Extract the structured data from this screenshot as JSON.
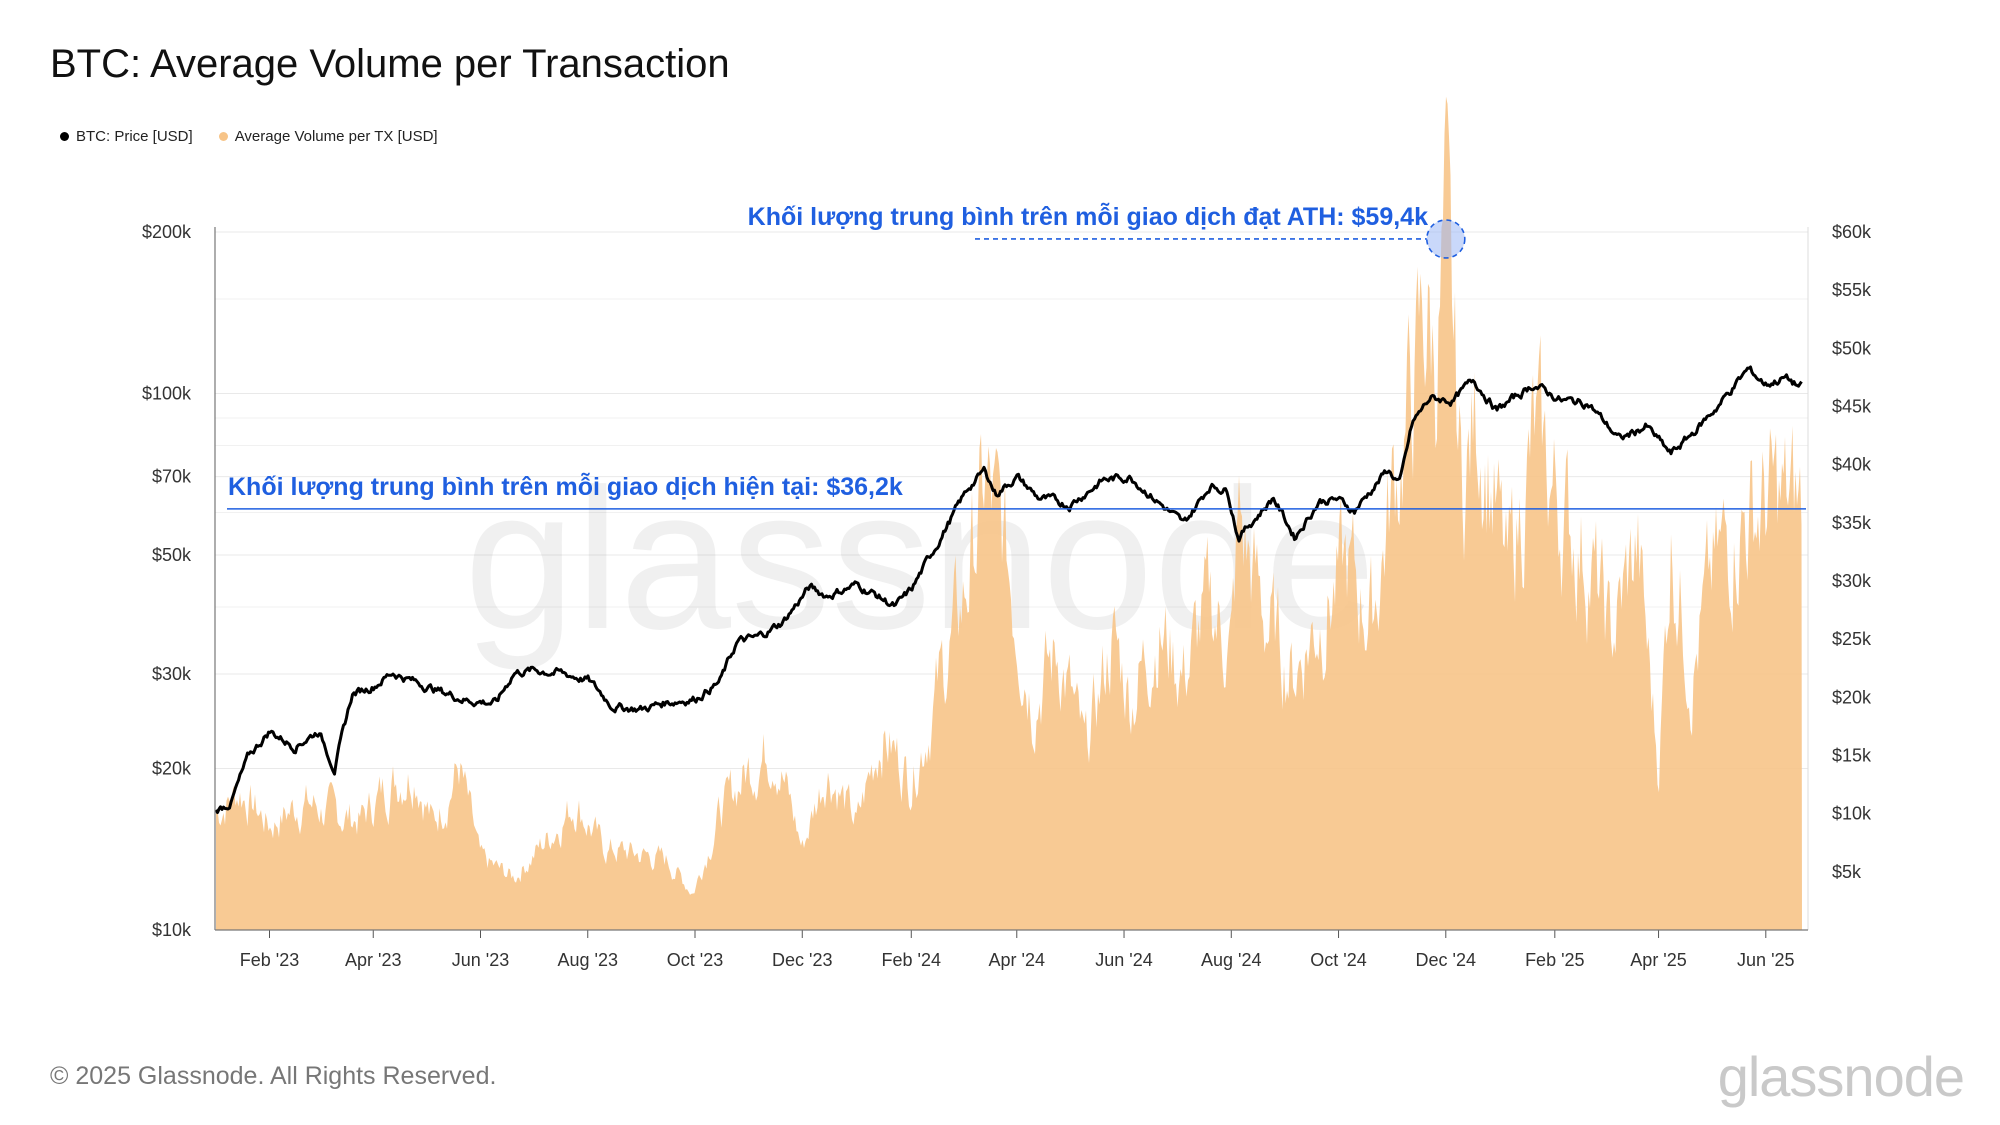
{
  "title": "BTC: Average Volume per Transaction",
  "legend": [
    {
      "label": "BTC: Price [USD]",
      "color": "#000000"
    },
    {
      "label": "Average Volume per TX [USD]",
      "color": "#f7c488"
    }
  ],
  "footer": "© 2025 Glassnode. All Rights Reserved.",
  "brand": "glassnode",
  "watermark": "glassnode",
  "chart_data": {
    "type": "line",
    "title": "BTC: Average Volume per Transaction",
    "x_ticks": [
      "Feb '23",
      "Apr '23",
      "Jun '23",
      "Aug '23",
      "Oct '23",
      "Dec '23",
      "Feb '24",
      "Apr '24",
      "Jun '24",
      "Aug '24",
      "Oct '24",
      "Dec '24",
      "Feb '25",
      "Apr '25",
      "Jun '25"
    ],
    "y_left_ticks": [
      "$10k",
      "$20k",
      "$30k",
      "$50k",
      "$70k",
      "$100k",
      "$200k"
    ],
    "y_left_scale": "log",
    "y_left_range": [
      10000,
      200000
    ],
    "y_right_ticks": [
      "$5k",
      "$10k",
      "$15k",
      "$20k",
      "$25k",
      "$30k",
      "$35k",
      "$40k",
      "$45k",
      "$50k",
      "$55k",
      "$60k"
    ],
    "y_right_range": [
      2000,
      60000
    ],
    "grid": true,
    "legend_position": "top-left",
    "series": [
      {
        "name": "BTC: Price [USD]",
        "axis": "left",
        "color": "#000000",
        "x": [
          "2023-01-01",
          "2023-01-10",
          "2023-01-20",
          "2023-02-01",
          "2023-02-15",
          "2023-03-01",
          "2023-03-10",
          "2023-03-20",
          "2023-04-01",
          "2023-04-12",
          "2023-04-25",
          "2023-05-10",
          "2023-05-25",
          "2023-06-10",
          "2023-06-20",
          "2023-07-01",
          "2023-07-15",
          "2023-08-01",
          "2023-08-15",
          "2023-08-20",
          "2023-09-01",
          "2023-09-15",
          "2023-10-01",
          "2023-10-15",
          "2023-10-25",
          "2023-11-05",
          "2023-11-20",
          "2023-12-05",
          "2023-12-15",
          "2024-01-01",
          "2024-01-10",
          "2024-01-23",
          "2024-02-01",
          "2024-02-15",
          "2024-02-28",
          "2024-03-05",
          "2024-03-14",
          "2024-03-20",
          "2024-04-01",
          "2024-04-13",
          "2024-05-01",
          "2024-05-20",
          "2024-06-05",
          "2024-06-20",
          "2024-07-05",
          "2024-07-20",
          "2024-07-30",
          "2024-08-05",
          "2024-08-25",
          "2024-09-06",
          "2024-09-20",
          "2024-09-30",
          "2024-10-10",
          "2024-10-29",
          "2024-11-05",
          "2024-11-12",
          "2024-11-22",
          "2024-12-05",
          "2024-12-17",
          "2024-12-30",
          "2025-01-20",
          "2025-02-05",
          "2025-02-20",
          "2025-03-10",
          "2025-03-25",
          "2025-04-08",
          "2025-04-20",
          "2025-05-05",
          "2025-05-22",
          "2025-06-01",
          "2025-06-12",
          "2025-06-20"
        ],
        "y": [
          16600,
          17300,
          21000,
          23500,
          22000,
          23500,
          20000,
          27500,
          28500,
          30200,
          29000,
          27800,
          26800,
          26500,
          30200,
          30500,
          30200,
          29300,
          26200,
          26000,
          25800,
          26600,
          27000,
          29000,
          34500,
          35000,
          37500,
          43500,
          42000,
          44000,
          42500,
          40000,
          43000,
          52000,
          62000,
          67000,
          72000,
          65000,
          70000,
          64000,
          62000,
          69000,
          70000,
          63000,
          57000,
          67500,
          66000,
          54000,
          64000,
          54000,
          63000,
          63500,
          60500,
          72000,
          68000,
          88000,
          98000,
          97000,
          106000,
          93000,
          104000,
          97000,
          96000,
          82000,
          87000,
          77000,
          84000,
          95000,
          111000,
          104000,
          107000,
          103000
        ]
      },
      {
        "name": "Average Volume per TX [USD]",
        "axis": "right",
        "color": "#f7c488",
        "x": [
          "2023-01-01",
          "2023-01-15",
          "2023-02-01",
          "2023-02-20",
          "2023-03-10",
          "2023-03-25",
          "2023-04-10",
          "2023-04-25",
          "2023-05-05",
          "2023-05-20",
          "2023-06-01",
          "2023-06-20",
          "2023-07-10",
          "2023-07-25",
          "2023-08-10",
          "2023-08-30",
          "2023-09-15",
          "2023-09-30",
          "2023-10-15",
          "2023-11-01",
          "2023-11-15",
          "2023-12-01",
          "2023-12-15",
          "2024-01-01",
          "2024-01-15",
          "2024-02-01",
          "2024-02-15",
          "2024-03-01",
          "2024-03-14",
          "2024-03-25",
          "2024-04-10",
          "2024-04-25",
          "2024-05-10",
          "2024-05-25",
          "2024-06-05",
          "2024-06-20",
          "2024-07-05",
          "2024-07-20",
          "2024-08-01",
          "2024-08-05",
          "2024-08-20",
          "2024-09-05",
          "2024-09-20",
          "2024-10-05",
          "2024-10-20",
          "2024-11-01",
          "2024-11-12",
          "2024-11-20",
          "2024-11-25",
          "2024-12-01",
          "2024-12-10",
          "2024-12-20",
          "2025-01-05",
          "2025-01-20",
          "2025-02-05",
          "2025-02-20",
          "2025-03-05",
          "2025-03-20",
          "2025-04-01",
          "2025-04-08",
          "2025-04-20",
          "2025-05-01",
          "2025-05-15",
          "2025-05-25",
          "2025-06-05",
          "2025-06-20"
        ],
        "y": [
          10000,
          12000,
          9000,
          11000,
          10000,
          9500,
          12500,
          14000,
          9000,
          14000,
          6000,
          4500,
          8000,
          11000,
          7000,
          6500,
          6000,
          3200,
          10000,
          14000,
          16000,
          7000,
          14000,
          9000,
          17000,
          13000,
          20000,
          28000,
          38000,
          33000,
          20000,
          24000,
          15000,
          25000,
          20000,
          26000,
          22000,
          28000,
          24000,
          35000,
          27000,
          22000,
          27000,
          31000,
          27000,
          38000,
          46000,
          53000,
          49000,
          59400,
          38000,
          45000,
          30000,
          42000,
          36000,
          32000,
          25000,
          33000,
          14000,
          34000,
          22000,
          30000,
          35000,
          36000,
          37000,
          36200
        ]
      }
    ],
    "annotations": [
      {
        "text": "Khối lượng trung bình trên mỗi giao dịch đạt ATH: $59,4k",
        "x": "2024-12-01",
        "y": 59400,
        "axis": "right"
      },
      {
        "text": "Khối lượng trung bình trên mỗi giao dịch hiện tại: $36,2k",
        "y": 36200,
        "axis": "right"
      }
    ]
  }
}
